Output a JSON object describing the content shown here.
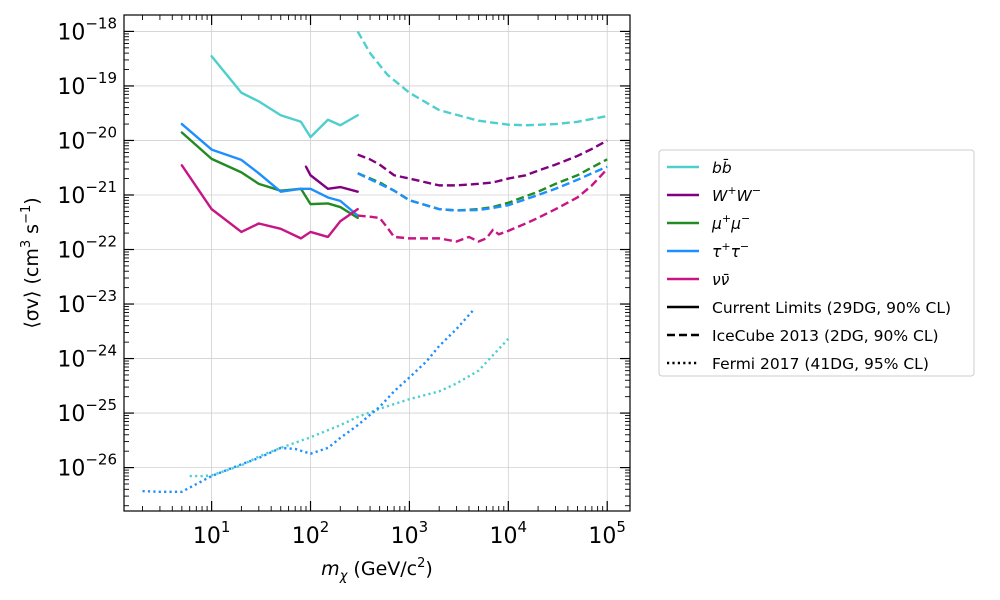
{
  "chart_data": {
    "type": "line",
    "x_scale": "log",
    "y_scale": "log",
    "xlim": [
      1.3,
      170000
    ],
    "ylim": [
      1.6e-27,
      2e-18
    ],
    "grid": true,
    "legend_position": "outside-right",
    "xlabel": {
      "base": "m",
      "sub": "χ",
      "pre": " (GeV/c",
      "sup": "2",
      "post": ")"
    },
    "ylabel": {
      "pre": "⟨σv⟩ (cm",
      "sup1": "3",
      "mid": " s",
      "sup2": "−1",
      "post": ")"
    },
    "x_ticks": [
      {
        "value": 10,
        "base": "10",
        "exp": "1"
      },
      {
        "value": 100,
        "base": "10",
        "exp": "2"
      },
      {
        "value": 1000,
        "base": "10",
        "exp": "3"
      },
      {
        "value": 10000,
        "base": "10",
        "exp": "4"
      },
      {
        "value": 100000,
        "base": "10",
        "exp": "5"
      }
    ],
    "y_ticks": [
      {
        "value": 1e-26,
        "base": "10",
        "exp": "−26"
      },
      {
        "value": 1e-25,
        "base": "10",
        "exp": "−25"
      },
      {
        "value": 1e-24,
        "base": "10",
        "exp": "−24"
      },
      {
        "value": 1e-23,
        "base": "10",
        "exp": "−23"
      },
      {
        "value": 1e-22,
        "base": "10",
        "exp": "−22"
      },
      {
        "value": 1e-21,
        "base": "10",
        "exp": "−21"
      },
      {
        "value": 1e-20,
        "base": "10",
        "exp": "−20"
      },
      {
        "value": 1e-19,
        "base": "10",
        "exp": "−19"
      },
      {
        "value": 1e-18,
        "base": "10",
        "exp": "−18"
      }
    ],
    "colors": {
      "bb": "#4ecfce",
      "ww": "#800080",
      "mumu": "#228b22",
      "tautau": "#1e8fff",
      "nunu": "#c71585"
    },
    "series": [
      {
        "id": "bb-current",
        "channel": "bb",
        "style": "solid",
        "x": [
          10,
          20,
          30,
          50,
          80,
          100,
          150,
          200,
          300
        ],
        "y": [
          3.5e-19,
          7.5e-20,
          5.2e-20,
          2.9e-20,
          2.2e-20,
          1.15e-20,
          2.4e-20,
          1.9e-20,
          2.9e-20
        ]
      },
      {
        "id": "ww-current",
        "channel": "ww",
        "style": "solid",
        "x": [
          90,
          100,
          150,
          200,
          300
        ],
        "y": [
          3.3e-21,
          2.3e-21,
          1.3e-21,
          1.4e-21,
          1.15e-21
        ]
      },
      {
        "id": "mumu-current",
        "channel": "mumu",
        "style": "solid",
        "x": [
          5,
          10,
          20,
          30,
          50,
          80,
          100,
          150,
          200,
          300
        ],
        "y": [
          1.4e-20,
          4.6e-21,
          2.6e-21,
          1.6e-21,
          1.2e-21,
          1.3e-21,
          6.8e-22,
          7e-22,
          6e-22,
          3.8e-22
        ]
      },
      {
        "id": "tautau-current",
        "channel": "tautau",
        "style": "solid",
        "x": [
          5,
          10,
          20,
          30,
          50,
          80,
          100,
          150,
          200,
          300
        ],
        "y": [
          2e-20,
          6.8e-21,
          4.4e-21,
          2.5e-21,
          1.15e-21,
          1.3e-21,
          1.3e-21,
          9e-22,
          7.8e-22,
          4.2e-22
        ]
      },
      {
        "id": "nunu-current",
        "channel": "nunu",
        "style": "solid",
        "x": [
          5,
          10,
          20,
          30,
          50,
          80,
          100,
          150,
          200,
          300
        ],
        "y": [
          3.5e-21,
          5.5e-22,
          2.1e-22,
          3e-22,
          2.4e-22,
          1.6e-22,
          2.1e-22,
          1.7e-22,
          3.3e-22,
          5.5e-22
        ]
      },
      {
        "id": "bb-icecube",
        "channel": "bb",
        "style": "dashed",
        "x": [
          300,
          400,
          600,
          1000,
          2000,
          5000,
          10000,
          15000,
          30000,
          50000,
          100000
        ],
        "y": [
          1e-18,
          4e-19,
          1.6e-19,
          7.5e-20,
          3.6e-20,
          2.3e-20,
          1.95e-20,
          1.9e-20,
          2e-20,
          2.2e-20,
          2.8e-20
        ]
      },
      {
        "id": "ww-icecube",
        "channel": "ww",
        "style": "dashed",
        "x": [
          300,
          400,
          500,
          700,
          1000,
          2000,
          3000,
          5000,
          7000,
          10000,
          15000,
          20000,
          30000,
          50000,
          70000,
          100000
        ],
        "y": [
          5.5e-21,
          4.5e-21,
          3.6e-21,
          2.3e-21,
          2e-21,
          1.5e-21,
          1.5e-21,
          1.6e-21,
          1.7e-21,
          2e-21,
          2.3e-21,
          2.8e-21,
          3.6e-21,
          5.2e-21,
          7e-21,
          1e-20
        ]
      },
      {
        "id": "mumu-icecube",
        "channel": "mumu",
        "style": "dashed",
        "x": [
          300,
          500,
          700,
          1000,
          2000,
          3000,
          5000,
          7000,
          10000,
          20000,
          30000,
          50000,
          70000,
          100000
        ],
        "y": [
          2.5e-21,
          1.7e-21,
          1.2e-21,
          8e-22,
          5.5e-22,
          5.2e-22,
          5.5e-22,
          6e-22,
          7.2e-22,
          1.15e-21,
          1.6e-21,
          2.3e-21,
          3.2e-21,
          4.5e-21
        ]
      },
      {
        "id": "tautau-icecube",
        "channel": "tautau",
        "style": "dashed",
        "x": [
          300,
          500,
          700,
          1000,
          2000,
          3000,
          5000,
          7000,
          10000,
          20000,
          30000,
          50000,
          70000,
          100000
        ],
        "y": [
          2.5e-21,
          1.6e-21,
          1.2e-21,
          8e-22,
          5.5e-22,
          5.2e-22,
          5.3e-22,
          5.8e-22,
          6.5e-22,
          1e-21,
          1.3e-21,
          1.9e-21,
          2.5e-21,
          3.3e-21
        ]
      },
      {
        "id": "nunu-icecube",
        "channel": "nunu",
        "style": "dashed",
        "x": [
          300,
          400,
          500,
          600,
          700,
          1000,
          2000,
          3000,
          4000,
          5000,
          6000,
          7000,
          8000,
          10000,
          15000,
          20000,
          30000,
          50000,
          70000,
          100000
        ],
        "y": [
          4.2e-22,
          4e-22,
          3.8e-22,
          2.5e-22,
          1.7e-22,
          1.6e-22,
          1.6e-22,
          1.4e-22,
          1.7e-22,
          1.4e-22,
          1.6e-22,
          2.3e-22,
          1.9e-22,
          2.2e-22,
          3e-22,
          3.8e-22,
          5.5e-22,
          9e-22,
          1.5e-21,
          3e-21
        ]
      },
      {
        "id": "bb-fermi",
        "channel": "bb",
        "style": "dotted",
        "x": [
          6,
          7,
          8,
          10,
          20,
          30,
          50,
          100,
          200,
          300,
          500,
          1000,
          2000,
          3000,
          5000,
          10000
        ],
        "y": [
          7e-27,
          7e-27,
          7e-27,
          7.2e-27,
          1.1e-26,
          1.6e-26,
          2.3e-26,
          3.6e-26,
          6e-26,
          8.5e-26,
          1.2e-25,
          1.8e-25,
          2.5e-25,
          3.5e-25,
          6e-25,
          2.3e-24
        ]
      },
      {
        "id": "tautau-fermi",
        "channel": "tautau",
        "style": "dotted",
        "x": [
          2,
          3,
          4,
          5,
          6,
          10,
          20,
          30,
          50,
          70,
          100,
          150,
          200,
          300,
          500,
          700,
          1000,
          1500,
          2000,
          3000,
          4500
        ],
        "y": [
          3.7e-27,
          3.6e-27,
          3.6e-27,
          3.6e-27,
          4.3e-27,
          7e-27,
          1.15e-26,
          1.5e-26,
          2.3e-26,
          2.2e-26,
          1.8e-26,
          2.3e-26,
          3.5e-26,
          6e-26,
          1.3e-25,
          2.5e-25,
          4.5e-25,
          9e-25,
          1.7e-24,
          3.5e-24,
          8e-24
        ]
      }
    ],
    "legend": [
      {
        "label_base": "b",
        "label_sup": "",
        "label_base2": "b̄",
        "label_sup2": "",
        "color_key": "bb",
        "style": "solid",
        "key": "bb"
      },
      {
        "label_base": "W",
        "label_sup": "+",
        "label_base2": "W",
        "label_sup2": "−",
        "color_key": "ww",
        "style": "solid",
        "key": "ww"
      },
      {
        "label_base": "μ",
        "label_sup": "+",
        "label_base2": "μ",
        "label_sup2": "−",
        "color_key": "mumu",
        "style": "solid",
        "key": "mumu"
      },
      {
        "label_base": "τ",
        "label_sup": "+",
        "label_base2": "τ",
        "label_sup2": "−",
        "color_key": "tautau",
        "style": "solid",
        "key": "tautau"
      },
      {
        "label_base": "ν",
        "label_sup": "",
        "label_base2": "ν̄",
        "label_sup2": "",
        "color_key": "nunu",
        "style": "solid",
        "key": "nunu"
      },
      {
        "text": "Current Limits (29DG, 90% CL)",
        "color_key": "black",
        "style": "solid",
        "key": "current"
      },
      {
        "text": "IceCube 2013 (2DG, 90% CL)",
        "color_key": "black",
        "style": "dashed",
        "key": "icecube"
      },
      {
        "text": "Fermi 2017 (41DG, 95% CL)",
        "color_key": "black",
        "style": "dotted",
        "key": "fermi"
      }
    ]
  }
}
